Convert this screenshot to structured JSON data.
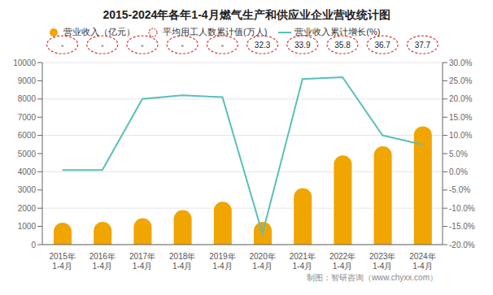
{
  "chart_data": {
    "type": "combo",
    "title": "2015-2024年各年1-4月燃气生产和供应业企业营收统计图",
    "categories": [
      "2015年\n1-4月",
      "2016年\n1-4月",
      "2017年\n1-4月",
      "2018年\n1-4月",
      "2019年\n1-4月",
      "2020年\n1-4月",
      "2021年\n1-4月",
      "2022年\n1-4月",
      "2023年\n1-4月",
      "2024年\n1-4月"
    ],
    "series": [
      {
        "name": "营业收入（亿元）",
        "type": "bar",
        "color": "#f0a500",
        "values": [
          1200,
          1250,
          1450,
          1900,
          2350,
          1250,
          3100,
          4900,
          5400,
          6500
        ]
      },
      {
        "name": "平均用工人数累计值(万人)",
        "type": "annotation",
        "color": "#e03030",
        "line_style": "dashed",
        "values": [
          null,
          null,
          null,
          null,
          null,
          32.3,
          33.9,
          35.8,
          36.7,
          37.7
        ],
        "value_labels": [
          "-",
          "-",
          "-",
          "-",
          "-",
          "32.3",
          "33.9",
          "35.8",
          "36.7",
          "37.7"
        ]
      },
      {
        "name": "营业收入累计增长(%)",
        "type": "line",
        "color": "#5bbfb8",
        "axis": "y2",
        "values": [
          0.5,
          0.5,
          20.0,
          21.0,
          20.5,
          -17.0,
          25.5,
          26.0,
          10.0,
          7.5
        ]
      }
    ],
    "ylim": [
      0,
      10000
    ],
    "yticks": [
      0,
      1000,
      2000,
      3000,
      4000,
      5000,
      6000,
      7000,
      8000,
      9000,
      10000
    ],
    "y2lim": [
      -20.0,
      30.0
    ],
    "y2ticks": [
      {
        "value": -20,
        "label": "-20.0%"
      },
      {
        "value": -15,
        "label": "-15.0%"
      },
      {
        "value": -10,
        "label": "-10.0%"
      },
      {
        "value": -5,
        "label": "-5.0%"
      },
      {
        "value": 0,
        "label": "0.0%"
      },
      {
        "value": 5,
        "label": "5.0%"
      },
      {
        "value": 10,
        "label": "10.0%"
      },
      {
        "value": 15,
        "label": "15.0%"
      },
      {
        "value": 20,
        "label": "20.0%"
      },
      {
        "value": 25,
        "label": "25.0%"
      },
      {
        "value": 30,
        "label": "30.0%"
      }
    ],
    "grid": true,
    "legend": "upper left",
    "annotations": [
      "制图：智研咨询（www.chyxx.com）"
    ]
  }
}
